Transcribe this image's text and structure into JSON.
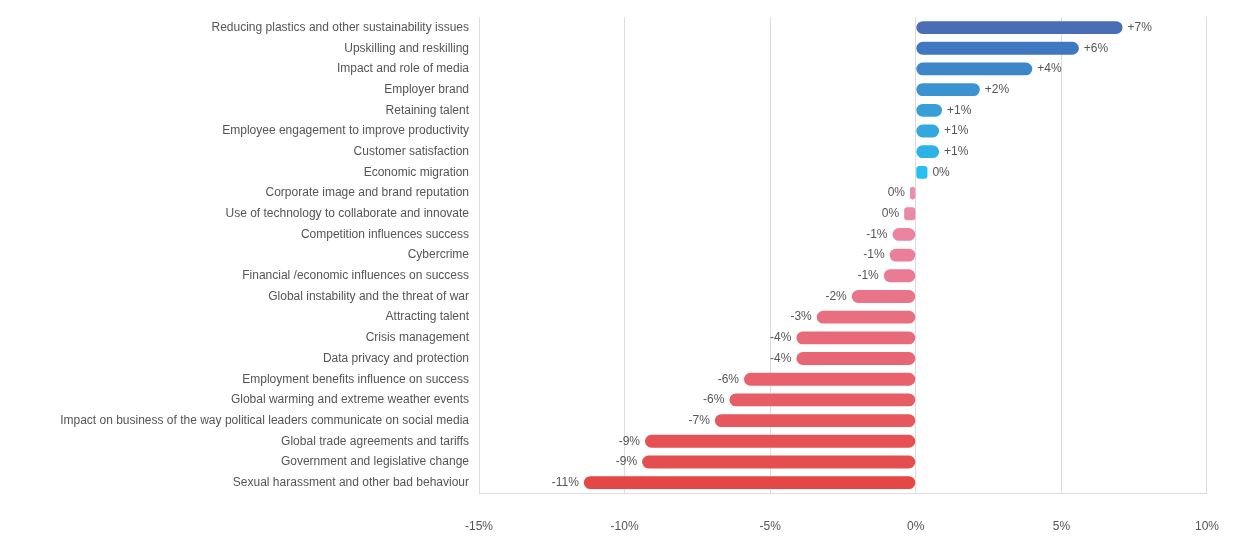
{
  "chart_data": {
    "type": "bar",
    "orientation": "horizontal",
    "categories": [
      "Reducing plastics and other sustainability issues",
      "Upskilling and reskilling",
      "Impact and role of media",
      "Employer brand",
      "Retaining talent",
      "Employee engagement to improve productivity",
      "Customer satisfaction",
      "Economic migration",
      "Corporate image and brand reputation",
      "Use of technology to collaborate and innovate",
      "Competition influences success",
      "Cybercrime",
      "Financial /economic influences on success",
      "Global instability and the threat of war",
      "Attracting talent",
      "Crisis management",
      "Data privacy and protection",
      "Employment benefits influence on success",
      "Global warming and extreme weather events",
      "Impact on business of the way political leaders communicate on social media",
      "Global trade agreements and tariffs",
      "Government and legislative change",
      "Sexual harassment and other bad behaviour"
    ],
    "values": [
      7.1,
      5.6,
      4.0,
      2.2,
      0.9,
      0.8,
      0.8,
      0.4,
      -0.2,
      -0.4,
      -0.8,
      -0.9,
      -1.1,
      -2.2,
      -3.4,
      -4.1,
      -4.1,
      -5.9,
      -6.4,
      -6.9,
      -9.3,
      -9.4,
      -11.4
    ],
    "colors": [
      "#4a6db5",
      "#3f78c0",
      "#3d86c8",
      "#3b92d0",
      "#389ed8",
      "#32a8df",
      "#2cb3e6",
      "#27bff0",
      "#ec8fac",
      "#eb8aa5",
      "#ea84a0",
      "#ea7f99",
      "#e97b94",
      "#e9748a",
      "#e86e80",
      "#e86a79",
      "#e76674",
      "#e7626c",
      "#e75d65",
      "#e6575e",
      "#e65254",
      "#e54e4f",
      "#e54844"
    ],
    "value_labels": [
      "+7%",
      "+6%",
      "+4%",
      "+2%",
      "+1%",
      "+1%",
      "+1%",
      "0%",
      "0%",
      "0%",
      "-1%",
      "-1%",
      "-1%",
      "-2%",
      "-3%",
      "-4%",
      "-4%",
      "-6%",
      "-6%",
      "-7%",
      "-9%",
      "-9%",
      "-11%"
    ],
    "xlim": [
      -15,
      10
    ],
    "xticks": [
      {
        "value": -15,
        "label": "-15%"
      },
      {
        "value": -10,
        "label": "-10%"
      },
      {
        "value": -5,
        "label": "-5%"
      },
      {
        "value": 0,
        "label": "0%"
      },
      {
        "value": 5,
        "label": "5%"
      },
      {
        "value": 10,
        "label": "10%"
      }
    ],
    "grid": "x"
  }
}
